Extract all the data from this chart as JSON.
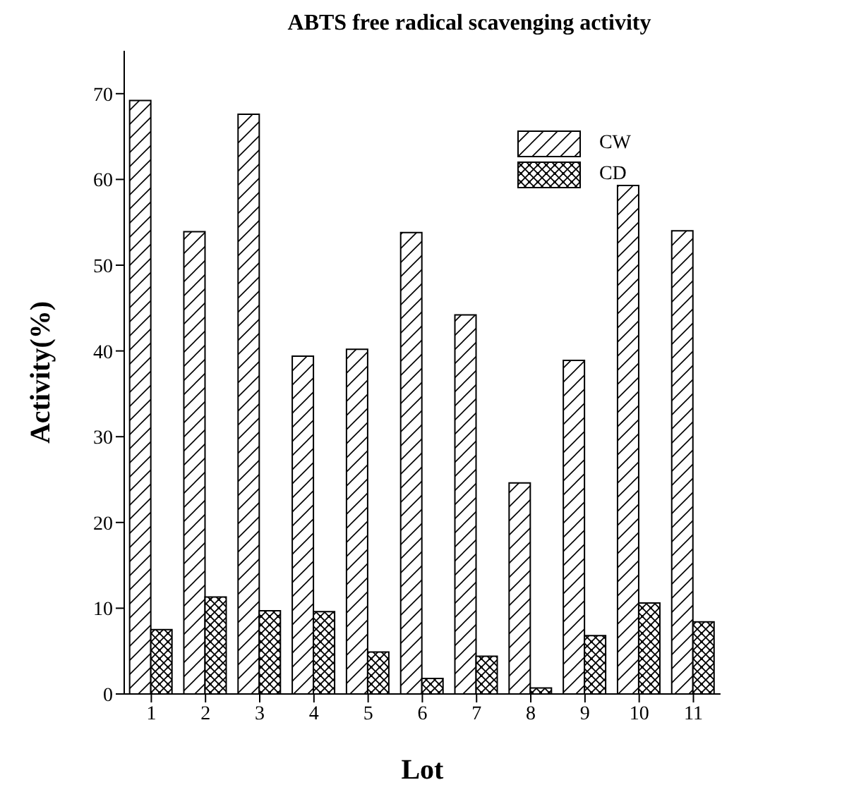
{
  "chart_data": {
    "type": "bar",
    "title": "ABTS free radical scavenging activity",
    "xlabel": "Lot",
    "ylabel": "Activity(%)",
    "categories": [
      "1",
      "2",
      "3",
      "4",
      "5",
      "6",
      "7",
      "8",
      "9",
      "10",
      "11"
    ],
    "series": [
      {
        "name": "CW",
        "color": "#000000",
        "values": [
          69.2,
          53.9,
          67.6,
          39.4,
          40.2,
          53.8,
          44.2,
          24.6,
          38.9,
          59.3,
          54.0
        ]
      },
      {
        "name": "CD",
        "color": "#000000",
        "values": [
          7.5,
          11.3,
          9.7,
          9.6,
          4.9,
          1.8,
          4.4,
          0.7,
          6.8,
          10.6,
          8.4
        ]
      }
    ],
    "ylim": [
      0,
      75
    ],
    "yticks": [
      0,
      10,
      20,
      30,
      40,
      50,
      60,
      70
    ],
    "grid": false,
    "legend": "top right"
  }
}
